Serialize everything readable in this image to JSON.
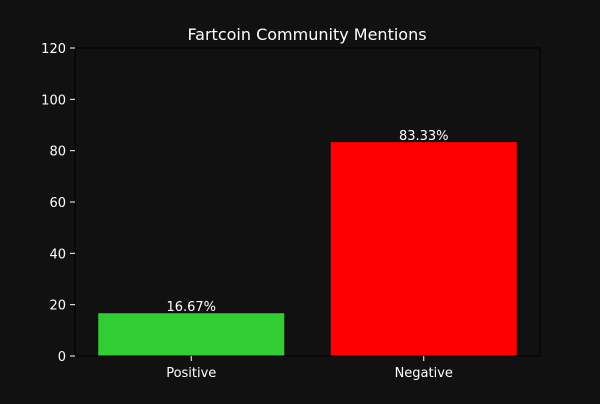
{
  "chart_data": {
    "type": "bar",
    "title": "Fartcoin Community Mentions",
    "xlabel": "",
    "ylabel": "",
    "categories": [
      "Positive",
      "Negative"
    ],
    "values": [
      16.67,
      83.33
    ],
    "data_labels": [
      "16.67%",
      "83.33%"
    ],
    "colors": [
      "#32cd32",
      "#ff0000"
    ],
    "ylim": [
      0,
      120
    ],
    "yticks": [
      0,
      20,
      40,
      60,
      80,
      100,
      120
    ],
    "ytick_labels": [
      "0",
      "20",
      "40",
      "60",
      "80",
      "100",
      "120"
    ],
    "grid": false,
    "legend": false
  },
  "theme": {
    "background": "#111111",
    "text_color": "#ffffff",
    "axis_color": "#000000"
  }
}
